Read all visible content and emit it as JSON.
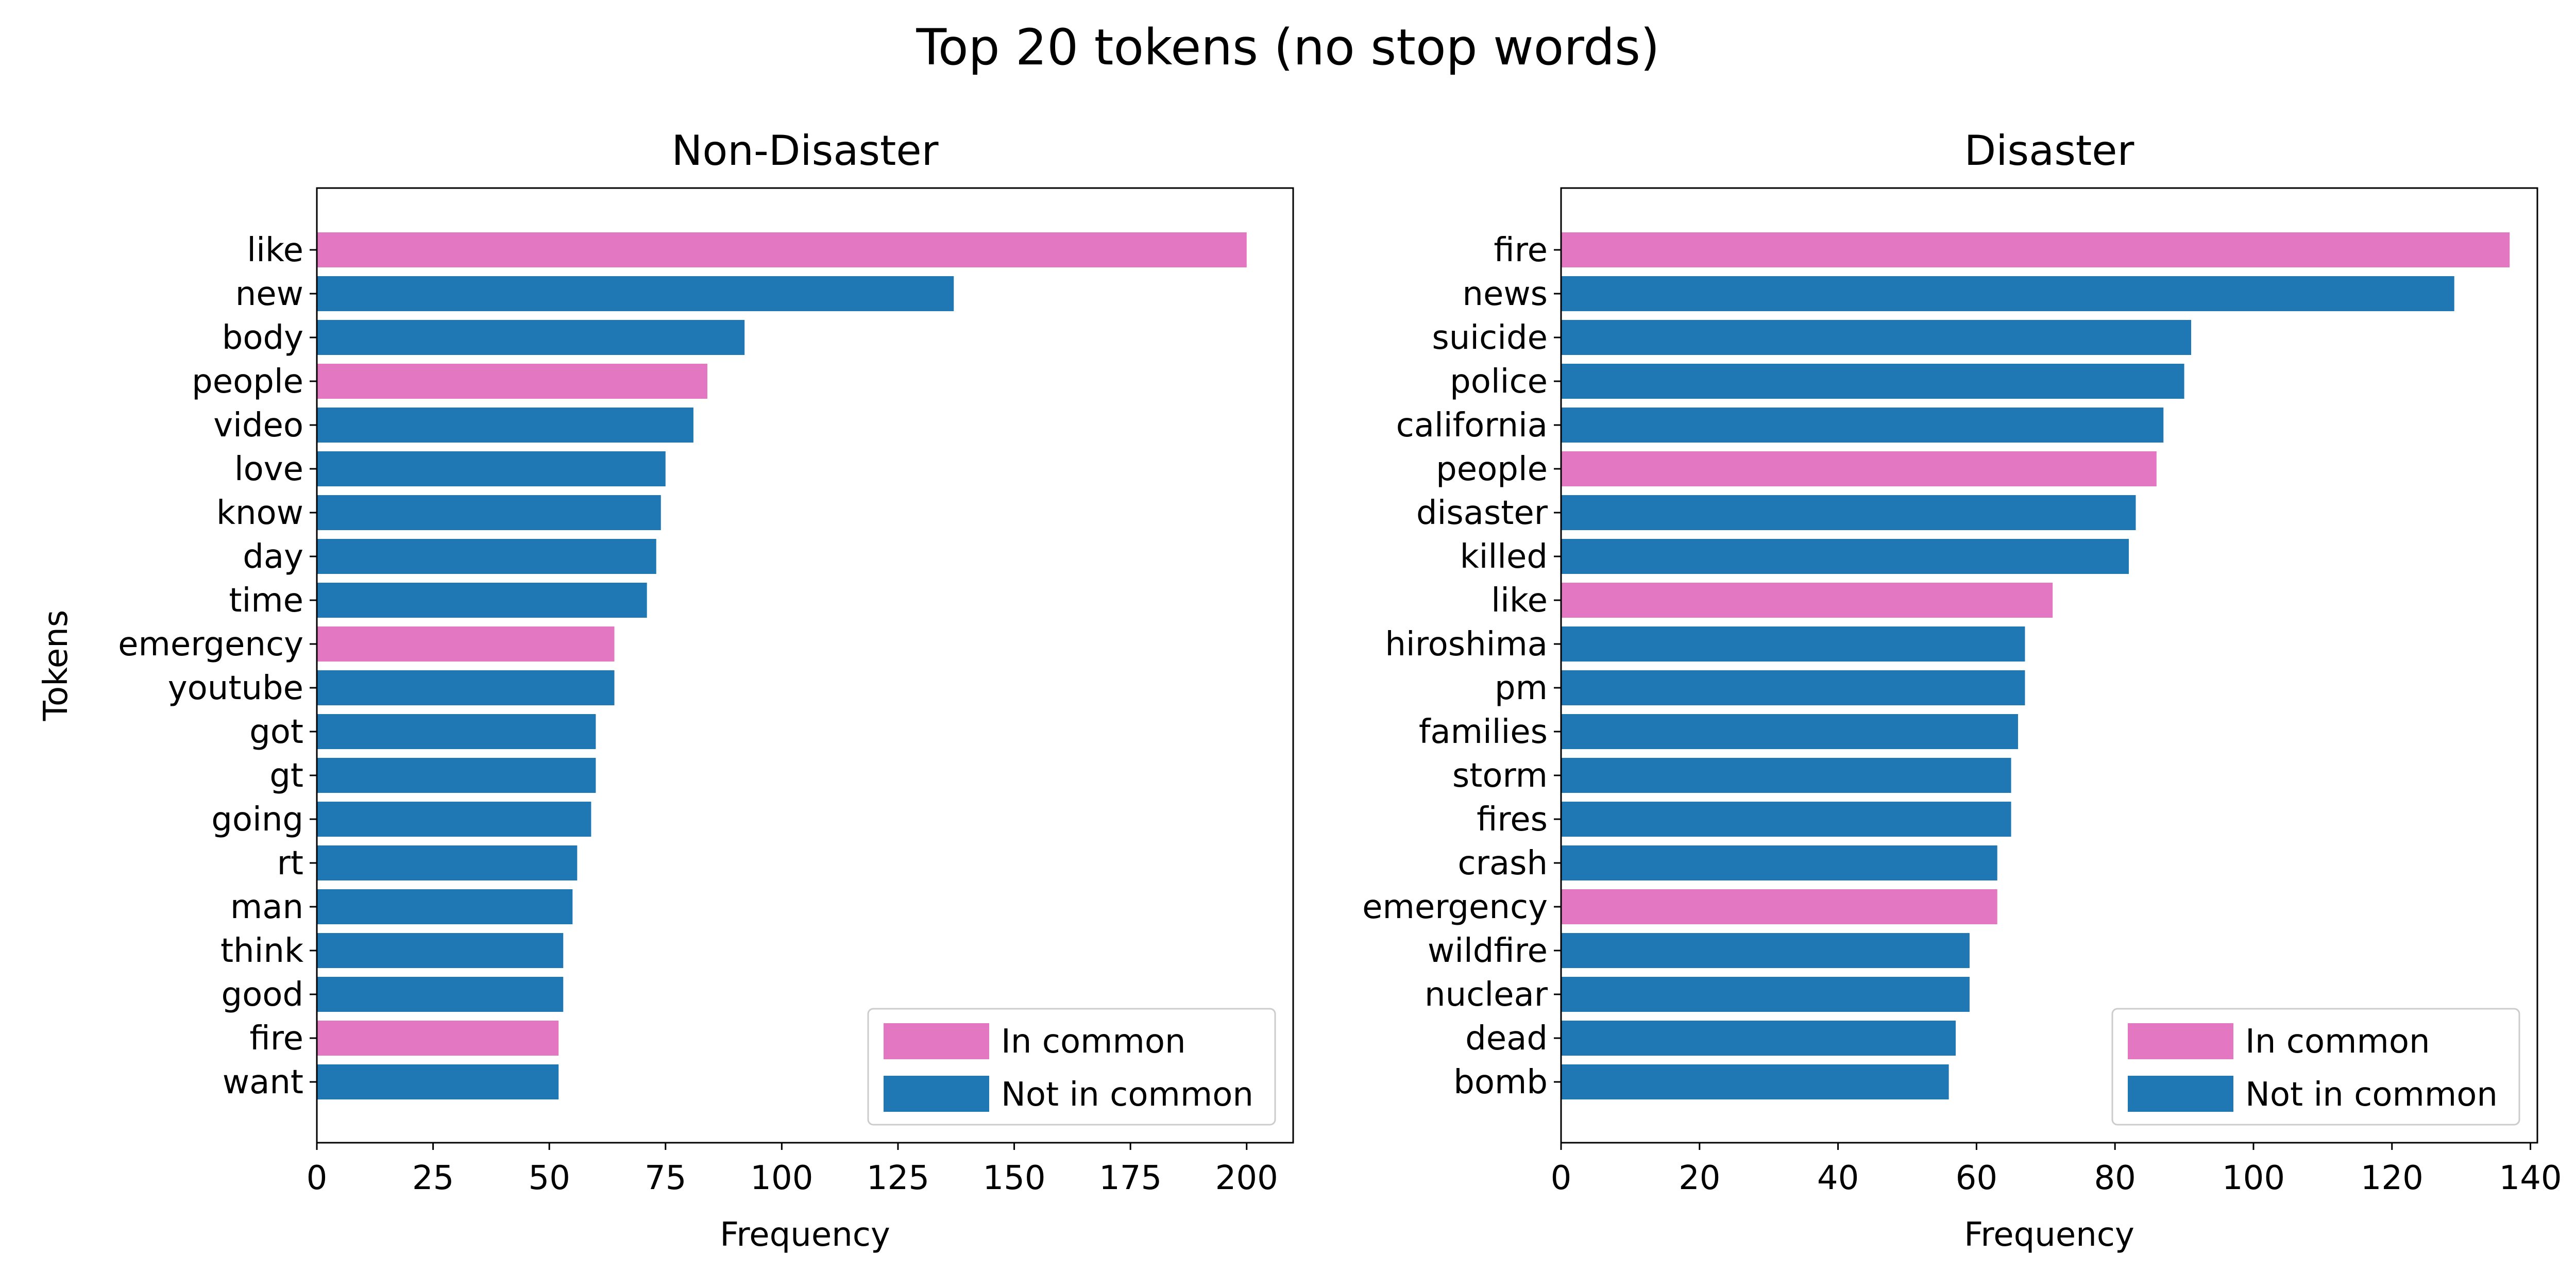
{
  "suptitle": "Top 20 tokens (no stop words)",
  "colors": {
    "in_common": "#e377c2",
    "not_in_common": "#1f77b4"
  },
  "legend": {
    "in_common": "In common",
    "not_in_common": "Not in common",
    "placement": "lower-right"
  },
  "chart_data": [
    {
      "type": "bar",
      "orientation": "horizontal",
      "title": "Non-Disaster",
      "xlabel": "Frequency",
      "ylabel": "Tokens",
      "xlim": [
        0,
        210
      ],
      "xticks": [
        0,
        25,
        50,
        75,
        100,
        125,
        150,
        175,
        200
      ],
      "grid": false,
      "categories": [
        "like",
        "new",
        "body",
        "people",
        "video",
        "love",
        "know",
        "day",
        "time",
        "emergency",
        "youtube",
        "got",
        "gt",
        "going",
        "rt",
        "man",
        "think",
        "good",
        "fire",
        "want"
      ],
      "values": [
        200,
        137,
        92,
        84,
        81,
        75,
        74,
        73,
        71,
        64,
        64,
        60,
        60,
        59,
        56,
        55,
        53,
        53,
        52,
        52
      ],
      "in_common": [
        true,
        false,
        false,
        true,
        false,
        false,
        false,
        false,
        false,
        true,
        false,
        false,
        false,
        false,
        false,
        false,
        false,
        false,
        true,
        false
      ]
    },
    {
      "type": "bar",
      "orientation": "horizontal",
      "title": "Disaster",
      "xlabel": "Frequency",
      "ylabel": "",
      "xlim": [
        0,
        141
      ],
      "xticks": [
        0,
        20,
        40,
        60,
        80,
        100,
        120,
        140
      ],
      "grid": false,
      "categories": [
        "fire",
        "news",
        "suicide",
        "police",
        "california",
        "people",
        "disaster",
        "killed",
        "like",
        "hiroshima",
        "pm",
        "families",
        "storm",
        "fires",
        "crash",
        "emergency",
        "wildfire",
        "nuclear",
        "dead",
        "bomb"
      ],
      "values": [
        137,
        129,
        91,
        90,
        87,
        86,
        83,
        82,
        71,
        67,
        67,
        66,
        65,
        65,
        63,
        63,
        59,
        59,
        57,
        56
      ],
      "in_common": [
        true,
        false,
        false,
        false,
        false,
        true,
        false,
        false,
        true,
        false,
        false,
        false,
        false,
        false,
        false,
        true,
        false,
        false,
        false,
        false
      ]
    }
  ]
}
